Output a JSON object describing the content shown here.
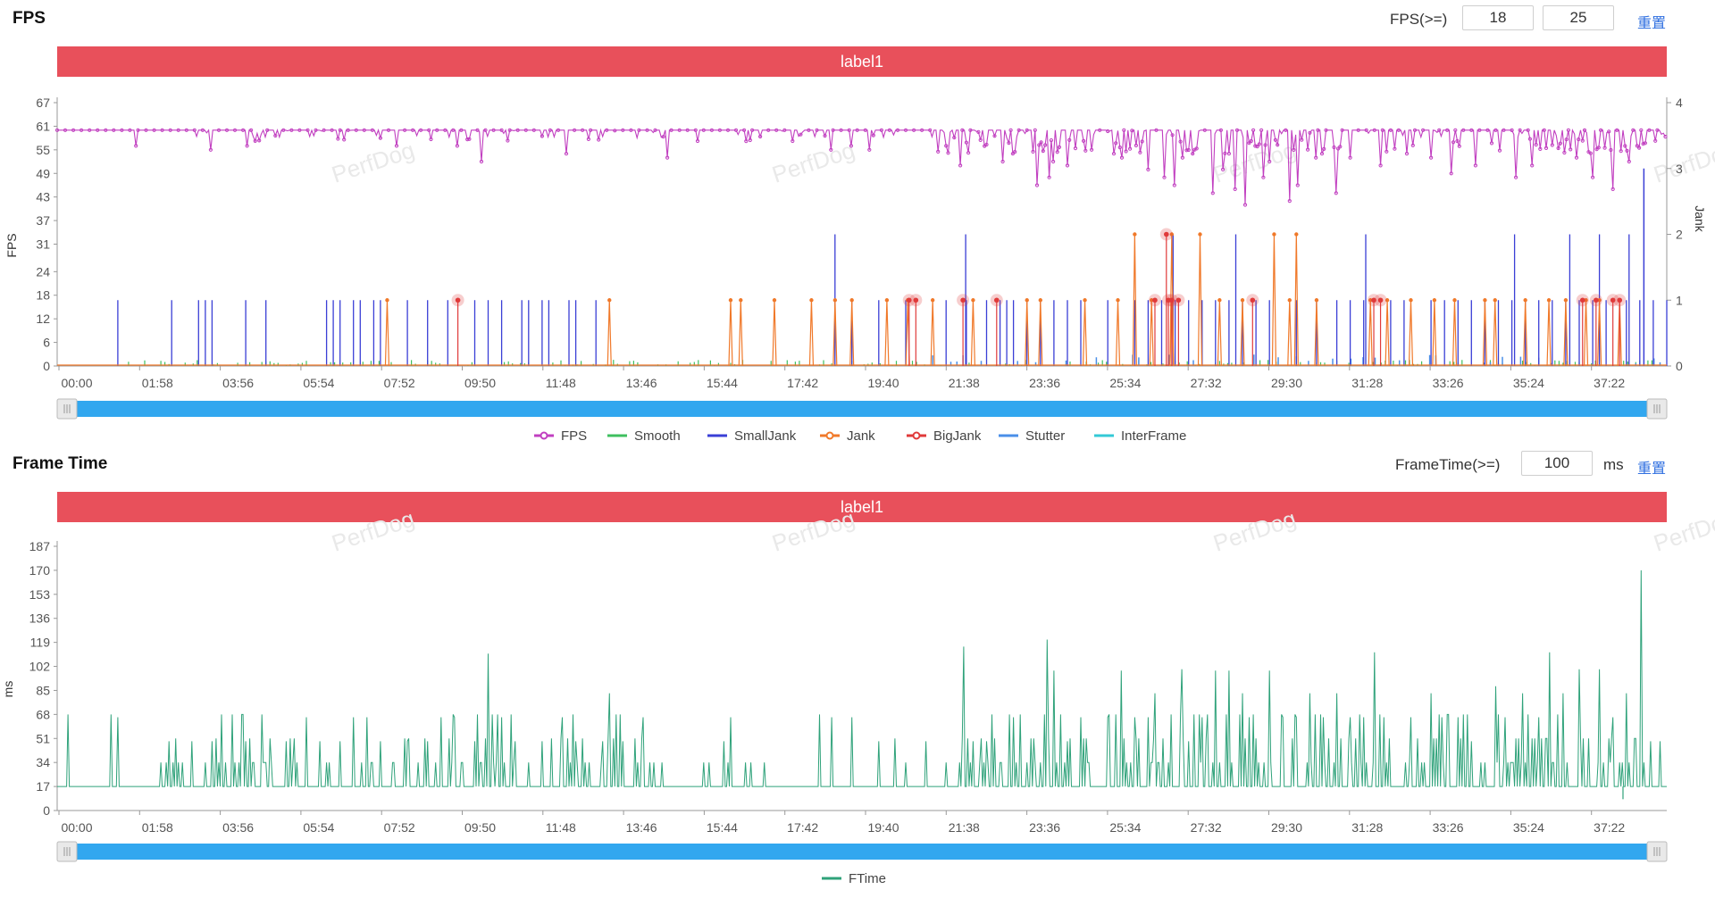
{
  "fps_panel": {
    "title": "FPS",
    "threshold_label": "FPS(>=)",
    "threshold_values": [
      "18",
      "25"
    ],
    "reset_label": "重置",
    "label_bar": "label1"
  },
  "frametime_panel": {
    "title": "Frame Time",
    "threshold_label": "FrameTime(>=)",
    "threshold_value": "100",
    "unit_label": "ms",
    "reset_label": "重置",
    "label_bar": "label1"
  },
  "watermark": "PerfDog",
  "colors": {
    "FPS": "#c13fc0",
    "Smooth": "#3fbf5f",
    "SmallJank": "#3a3fd6",
    "Jank": "#f0792a",
    "BigJank": "#e03a3a",
    "Stutter": "#4a8fe8",
    "InterFrame": "#33c9d6",
    "FTime": "#2fa27a",
    "slider": "#32a7ef",
    "label_bar": "#e8505b"
  },
  "chart_data": [
    {
      "type": "line",
      "title": "",
      "xlabel": "",
      "ylabel": "FPS",
      "y2label": "Jank",
      "x_ticks": [
        "00:00",
        "01:58",
        "03:56",
        "05:54",
        "07:52",
        "09:50",
        "11:48",
        "13:46",
        "15:44",
        "17:42",
        "19:40",
        "21:38",
        "23:36",
        "25:34",
        "27:32",
        "29:30",
        "31:28",
        "33:26",
        "35:24",
        "37:22"
      ],
      "y_ticks": [
        "0",
        "6",
        "12",
        "18",
        "24",
        "31",
        "37",
        "43",
        "49",
        "55",
        "61",
        "67"
      ],
      "ylim": [
        0,
        67
      ],
      "y2_ticks": [
        "0",
        "1",
        "2",
        "3",
        "4"
      ],
      "y2lim": [
        0,
        4
      ],
      "xlim_seconds": [
        0,
        2390
      ],
      "legend": [
        "FPS",
        "Smooth",
        "SmallJank",
        "Jank",
        "BigJank",
        "Stutter",
        "InterFrame"
      ],
      "legend_position": "bottom-center",
      "fps_baseline": 60,
      "fps_dips": [
        [
          118,
          56
        ],
        [
          228,
          55
        ],
        [
          282,
          56
        ],
        [
          505,
          56
        ],
        [
          595,
          56
        ],
        [
          630,
          52
        ],
        [
          755,
          54
        ],
        [
          905,
          53
        ],
        [
          1150,
          55
        ],
        [
          1180,
          56
        ],
        [
          1205,
          55
        ],
        [
          1320,
          56
        ],
        [
          1340,
          51
        ],
        [
          1405,
          52
        ],
        [
          1420,
          54
        ],
        [
          1455,
          46
        ],
        [
          1473,
          48
        ],
        [
          1480,
          52
        ],
        [
          1500,
          51
        ],
        [
          1570,
          54
        ],
        [
          1580,
          53
        ],
        [
          1620,
          50
        ],
        [
          1645,
          48
        ],
        [
          1670,
          53
        ],
        [
          1660,
          46
        ],
        [
          1685,
          54
        ],
        [
          1715,
          44
        ],
        [
          1730,
          50
        ],
        [
          1750,
          45
        ],
        [
          1765,
          41
        ],
        [
          1790,
          48
        ],
        [
          1800,
          52
        ],
        [
          1830,
          42
        ],
        [
          1842,
          46
        ],
        [
          1870,
          53
        ],
        [
          1900,
          44
        ],
        [
          1920,
          53
        ],
        [
          1965,
          51
        ],
        [
          2040,
          53
        ],
        [
          2070,
          49
        ],
        [
          2105,
          51
        ],
        [
          2165,
          48
        ],
        [
          2190,
          51
        ],
        [
          2255,
          53
        ],
        [
          2280,
          48
        ],
        [
          2311,
          45
        ],
        [
          2333,
          52
        ],
        [
          2345,
          56
        ]
      ],
      "smalljank_seconds": [
        90,
        170,
        210,
        220,
        230,
        280,
        310,
        400,
        410,
        420,
        440,
        450,
        470,
        480,
        520,
        550,
        580,
        620,
        640,
        660,
        690,
        700,
        720,
        730,
        760,
        770,
        800,
        1180,
        1220,
        1260,
        1320,
        1350,
        1380,
        1400,
        1410,
        1420,
        1440,
        1460,
        1480,
        1500,
        1520,
        1560,
        1600,
        1620,
        1640,
        1660,
        1680,
        1700,
        1720,
        1740,
        1760,
        1780,
        1800,
        1840,
        1870,
        1900,
        1920,
        1940,
        1980,
        2000,
        2040,
        2060,
        2080,
        2100,
        2120,
        2140,
        2160,
        2180,
        2200,
        2220,
        2240,
        2260,
        2280,
        2300,
        2330,
        2350,
        2370,
        2390
      ],
      "smalljank_big_seconds": [
        1155,
        1349,
        1657,
        1750,
        1943,
        2164,
        2246,
        2290,
        2334
      ],
      "jank_seconds": [
        490,
        820,
        1000,
        1015,
        1065,
        1120,
        1155,
        1180,
        1232,
        1263,
        1300,
        1360,
        1440,
        1460,
        1526,
        1575,
        1625,
        1655,
        1726,
        1760,
        1830,
        1870,
        1950,
        1975,
        2010,
        2045,
        2075,
        2120,
        2135,
        2180,
        2215,
        2240,
        2270,
        2290,
        2320
      ],
      "jank_two_seconds": [
        1600,
        1655,
        1697,
        1807,
        1840
      ],
      "bigjank_seconds": [
        595,
        1265,
        1275,
        1345,
        1395,
        1630,
        1650,
        1655,
        1665,
        1775,
        1955,
        1965,
        2265,
        2285,
        2310,
        2320
      ],
      "bigjank_two_seconds": [
        1647
      ]
    },
    {
      "type": "line",
      "title": "",
      "xlabel": "",
      "ylabel": "ms",
      "x_ticks": [
        "00:00",
        "01:58",
        "03:56",
        "05:54",
        "07:52",
        "09:50",
        "11:48",
        "13:46",
        "15:44",
        "17:42",
        "19:40",
        "21:38",
        "23:36",
        "25:34",
        "27:32",
        "29:30",
        "31:28",
        "33:26",
        "35:24",
        "37:22"
      ],
      "y_ticks": [
        "0",
        "17",
        "34",
        "51",
        "68",
        "85",
        "102",
        "119",
        "136",
        "153",
        "170",
        "187"
      ],
      "ylim": [
        0,
        187
      ],
      "xlim_seconds": [
        0,
        2390
      ],
      "legend": [
        "FTime"
      ],
      "legend_position": "bottom-center",
      "ftime_baseline": 17,
      "ftime_spikes": [
        [
          90,
          66
        ],
        [
          165,
          49
        ],
        [
          180,
          34
        ],
        [
          200,
          49
        ],
        [
          230,
          49
        ],
        [
          240,
          34
        ],
        [
          250,
          34
        ],
        [
          280,
          49
        ],
        [
          290,
          34
        ],
        [
          310,
          34
        ],
        [
          340,
          49
        ],
        [
          370,
          66
        ],
        [
          390,
          49
        ],
        [
          400,
          34
        ],
        [
          420,
          49
        ],
        [
          440,
          66
        ],
        [
          460,
          66
        ],
        [
          480,
          49
        ],
        [
          500,
          34
        ],
        [
          520,
          49
        ],
        [
          550,
          49
        ],
        [
          570,
          66
        ],
        [
          590,
          66
        ],
        [
          600,
          34
        ],
        [
          620,
          49
        ],
        [
          640,
          111
        ],
        [
          660,
          66
        ],
        [
          680,
          49
        ],
        [
          700,
          34
        ],
        [
          720,
          49
        ],
        [
          750,
          66
        ],
        [
          770,
          49
        ],
        [
          790,
          34
        ],
        [
          810,
          49
        ],
        [
          820,
          83
        ],
        [
          840,
          49
        ],
        [
          870,
          66
        ],
        [
          885,
          34
        ],
        [
          960,
          34
        ],
        [
          990,
          49
        ],
        [
          1000,
          66
        ],
        [
          1030,
          34
        ],
        [
          1050,
          34
        ],
        [
          1150,
          66
        ],
        [
          1180,
          66
        ],
        [
          1220,
          49
        ],
        [
          1260,
          34
        ],
        [
          1290,
          49
        ],
        [
          1320,
          34
        ],
        [
          1345,
          116
        ],
        [
          1360,
          49
        ],
        [
          1380,
          49
        ],
        [
          1400,
          34
        ],
        [
          1420,
          66
        ],
        [
          1440,
          34
        ],
        [
          1470,
          121
        ],
        [
          1480,
          99
        ],
        [
          1500,
          49
        ],
        [
          1520,
          66
        ],
        [
          1530,
          34
        ],
        [
          1560,
          66
        ],
        [
          1580,
          99
        ],
        [
          1600,
          66
        ],
        [
          1620,
          66
        ],
        [
          1630,
          83
        ],
        [
          1650,
          34
        ],
        [
          1670,
          100
        ],
        [
          1680,
          49
        ],
        [
          1700,
          66
        ],
        [
          1720,
          99
        ],
        [
          1740,
          99
        ],
        [
          1760,
          83
        ],
        [
          1770,
          66
        ],
        [
          1800,
          99
        ],
        [
          1820,
          66
        ],
        [
          1840,
          66
        ],
        [
          1860,
          83
        ],
        [
          1880,
          66
        ],
        [
          1900,
          83
        ],
        [
          1920,
          66
        ],
        [
          1940,
          66
        ],
        [
          1955,
          112
        ],
        [
          1970,
          66
        ],
        [
          2010,
          66
        ],
        [
          2040,
          83
        ],
        [
          2055,
          66
        ],
        [
          2080,
          66
        ],
        [
          2100,
          49
        ],
        [
          2120,
          34
        ],
        [
          2135,
          88
        ],
        [
          2150,
          66
        ],
        [
          2175,
          83
        ],
        [
          2200,
          66
        ],
        [
          2215,
          112
        ],
        [
          2235,
          83
        ],
        [
          2260,
          100
        ],
        [
          2290,
          100
        ],
        [
          2310,
          66
        ],
        [
          2330,
          83
        ],
        [
          2352,
          170
        ],
        [
          2365,
          49
        ],
        [
          2380,
          49
        ]
      ]
    }
  ]
}
